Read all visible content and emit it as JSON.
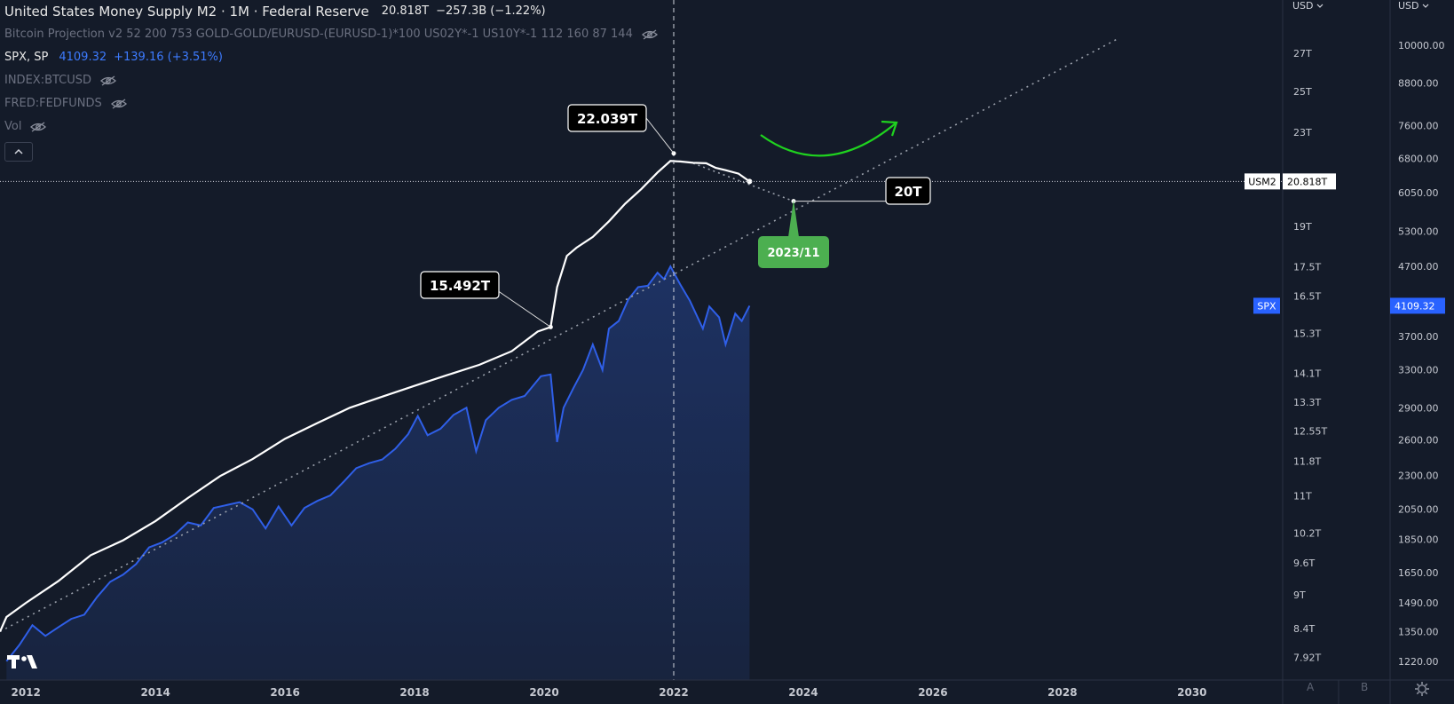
{
  "legend": {
    "main_title": "United States Money Supply M2 · 1M · Federal Reserve",
    "main_value": "20.818T",
    "main_change": "−257.3B (−1.22%)",
    "projection_label": "Bitcoin Projection v2 52 200 753 GOLD-GOLD/EURUSD-(EURUSD-1)*100 US02Y*-1 US10Y*-1 112 160 87 144",
    "spx_name": "SPX, SP",
    "spx_value": "4109.32",
    "spx_change": "+139.16 (+3.51%)",
    "btc_label": "INDEX:BTCUSD",
    "fed_label": "FRED:FEDFUNDS",
    "vol_label": "Vol"
  },
  "axis_headers": {
    "m2_currency": "USD",
    "spx_currency": "USD"
  },
  "bottom_buttons": {
    "auto": "A",
    "buttons_b": "B"
  },
  "colors": {
    "background": "#141b29",
    "m2_line": "#ffffff",
    "spx_line": "#2f5fe8",
    "spx_fill": "#1e3366",
    "annotation_green": "#4caf50",
    "arrow_green": "#1fd21f",
    "spx_badge": "#2962ff"
  },
  "chart_data": {
    "type": "line",
    "x_axis": {
      "range": [
        2011.6,
        2031.4
      ],
      "ticks": [
        "2012",
        "2014",
        "2016",
        "2018",
        "2020",
        "2022",
        "2024",
        "2026",
        "2028",
        "2030"
      ]
    },
    "m2_axis": {
      "scale": "log",
      "unit": "T",
      "ticks": [
        "27T",
        "25T",
        "23T",
        "20.818T",
        "19T",
        "17.5T",
        "16.5T",
        "15.3T",
        "14.1T",
        "13.3T",
        "12.55T",
        "11.8T",
        "11T",
        "10.2T",
        "9.6T",
        "9T",
        "8.4T",
        "7.92T"
      ]
    },
    "spx_axis": {
      "scale": "log",
      "ticks": [
        "10000.00",
        "8800.00",
        "7600.00",
        "6800.00",
        "6050.00",
        "5300.00",
        "4700.00",
        "4109.32",
        "3700.00",
        "3300.00",
        "2900.00",
        "2600.00",
        "2300.00",
        "2050.00",
        "1850.00",
        "1650.00",
        "1490.00",
        "1350.00",
        "1220.00"
      ]
    },
    "series": [
      {
        "name": "USM2",
        "x": [
          2011.6,
          2011.7,
          2012.0,
          2012.5,
          2013.0,
          2013.5,
          2014.0,
          2014.5,
          2015.0,
          2015.5,
          2016.0,
          2016.5,
          2017.0,
          2017.5,
          2018.0,
          2018.5,
          2019.0,
          2019.5,
          2019.9,
          2020.1,
          2020.2,
          2020.35,
          2020.5,
          2020.75,
          2021.0,
          2021.25,
          2021.5,
          2021.75,
          2021.95,
          2022.1,
          2022.3,
          2022.5,
          2022.65,
          2022.8,
          2023.0,
          2023.17
        ],
        "values": [
          8.35,
          8.6,
          8.85,
          9.25,
          9.75,
          10.05,
          10.45,
          10.95,
          11.45,
          11.85,
          12.35,
          12.75,
          13.15,
          13.45,
          13.75,
          14.05,
          14.35,
          14.75,
          15.35,
          15.492,
          16.8,
          17.9,
          18.2,
          18.6,
          19.2,
          19.9,
          20.5,
          21.2,
          21.7,
          21.68,
          21.62,
          21.6,
          21.4,
          21.3,
          21.15,
          20.818
        ]
      },
      {
        "name": "SPX",
        "x": [
          2011.7,
          2011.9,
          2012.1,
          2012.3,
          2012.5,
          2012.7,
          2012.9,
          2013.1,
          2013.3,
          2013.5,
          2013.7,
          2013.9,
          2014.1,
          2014.3,
          2014.5,
          2014.7,
          2014.9,
          2015.1,
          2015.3,
          2015.5,
          2015.7,
          2015.9,
          2016.1,
          2016.3,
          2016.5,
          2016.7,
          2016.9,
          2017.1,
          2017.3,
          2017.5,
          2017.7,
          2017.9,
          2018.05,
          2018.2,
          2018.4,
          2018.6,
          2018.8,
          2018.95,
          2019.1,
          2019.3,
          2019.5,
          2019.7,
          2019.95,
          2020.1,
          2020.2,
          2020.3,
          2020.45,
          2020.6,
          2020.75,
          2020.9,
          2021.0,
          2021.15,
          2021.3,
          2021.45,
          2021.6,
          2021.75,
          2021.85,
          2021.95,
          2022.1,
          2022.25,
          2022.45,
          2022.55,
          2022.7,
          2022.8,
          2022.95,
          2023.05,
          2023.17
        ],
        "values": [
          1220,
          1290,
          1380,
          1330,
          1370,
          1410,
          1430,
          1520,
          1600,
          1640,
          1700,
          1800,
          1830,
          1880,
          1960,
          1940,
          2060,
          2080,
          2100,
          2050,
          1920,
          2070,
          1940,
          2060,
          2110,
          2150,
          2250,
          2360,
          2400,
          2430,
          2520,
          2650,
          2820,
          2640,
          2700,
          2830,
          2900,
          2500,
          2780,
          2900,
          2980,
          3020,
          3230,
          3250,
          2580,
          2900,
          3100,
          3300,
          3600,
          3300,
          3800,
          3900,
          4200,
          4380,
          4400,
          4600,
          4500,
          4700,
          4420,
          4180,
          3800,
          4100,
          3950,
          3600,
          4000,
          3900,
          4109.32
        ]
      }
    ],
    "trend_line": {
      "x": [
        2011.6,
        2028.85
      ],
      "m2_values": [
        8.35,
        27.8
      ]
    },
    "projection": {
      "x": [
        2022.3,
        2023.85
      ],
      "m2_values": [
        21.6,
        20.0
      ]
    },
    "crosshair_x": 2022.0,
    "annotations": [
      {
        "text": "22.039T",
        "x": 2022.0,
        "value": 22.039
      },
      {
        "text": "15.492T",
        "x": 2020.1,
        "value": 15.492
      },
      {
        "text": "20T",
        "x": 2023.85,
        "value": 20.0
      },
      {
        "text": "2023/11",
        "x": 2023.85,
        "value": 20.0
      }
    ],
    "price_labels": [
      {
        "series": "USM2",
        "tag": "USM2",
        "value": "20.818T"
      },
      {
        "series": "SPX",
        "tag": "SPX",
        "value": "4109.32"
      }
    ]
  }
}
